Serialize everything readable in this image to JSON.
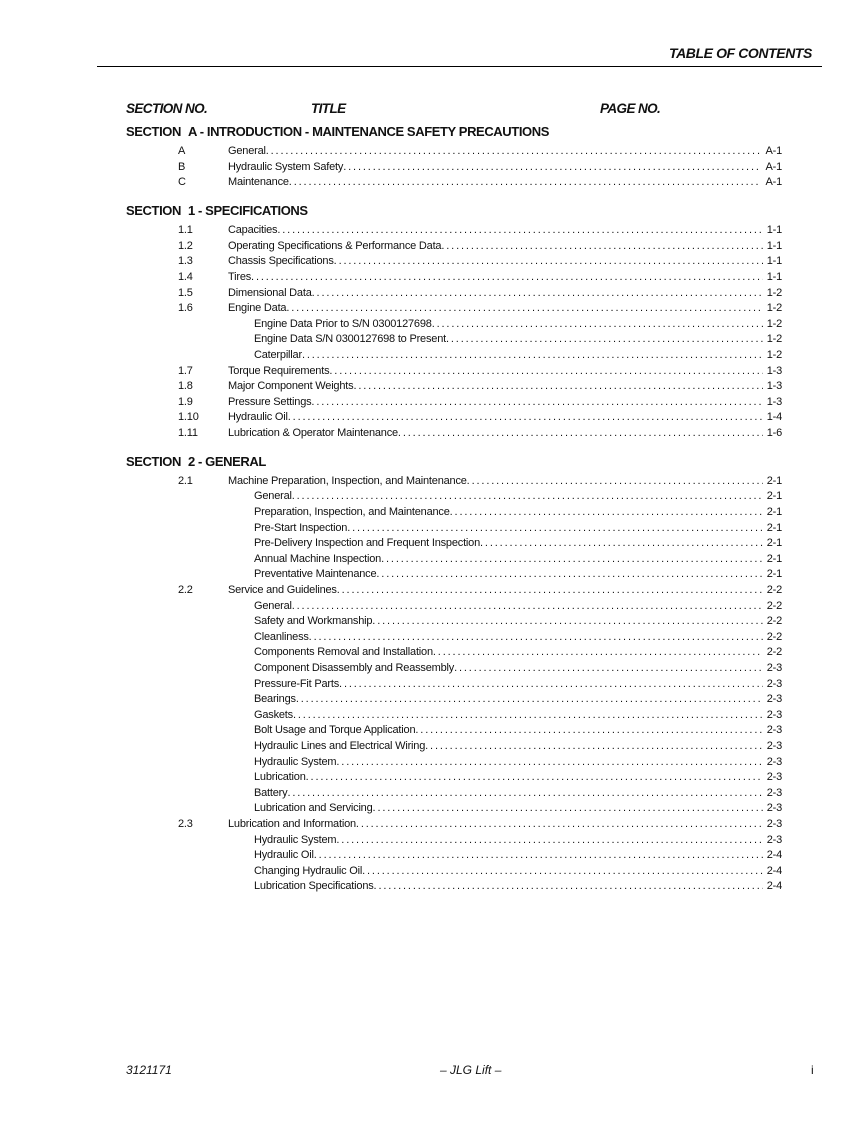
{
  "header": {
    "title": "TABLE OF CONTENTS"
  },
  "columns": {
    "section_no": "SECTION NO.",
    "title": "TITLE",
    "page_no": "PAGE NO."
  },
  "sections": [
    {
      "label": "SECTION",
      "title": "A - INTRODUCTION - MAINTENANCE SAFETY PRECAUTIONS",
      "entries": [
        {
          "num": "A",
          "title": "General",
          "page": "A-1",
          "level": 1
        },
        {
          "num": "B",
          "title": "Hydraulic System Safety",
          "page": "A-1",
          "level": 1
        },
        {
          "num": "C",
          "title": "Maintenance",
          "page": "A-1",
          "level": 1
        }
      ]
    },
    {
      "label": "SECTION",
      "title": "1 - SPECIFICATIONS",
      "entries": [
        {
          "num": "1.1",
          "title": "Capacities",
          "page": "1-1",
          "level": 1
        },
        {
          "num": "1.2",
          "title": "Operating Specifications & Performance Data",
          "page": "1-1",
          "level": 1
        },
        {
          "num": "1.3",
          "title": "Chassis Specifications",
          "page": "1-1",
          "level": 1
        },
        {
          "num": "1.4",
          "title": "Tires",
          "page": "1-1",
          "level": 1
        },
        {
          "num": "1.5",
          "title": "Dimensional Data",
          "page": "1-2",
          "level": 1
        },
        {
          "num": "1.6",
          "title": "Engine Data",
          "page": "1-2",
          "level": 1
        },
        {
          "num": "",
          "title": "Engine Data Prior to S/N 0300127698",
          "page": "1-2",
          "level": 2
        },
        {
          "num": "",
          "title": "Engine Data S/N 0300127698 to Present",
          "page": "1-2",
          "level": 2
        },
        {
          "num": "",
          "title": "Caterpillar",
          "page": "1-2",
          "level": 2
        },
        {
          "num": "1.7",
          "title": "Torque Requirements",
          "page": "1-3",
          "level": 1
        },
        {
          "num": "1.8",
          "title": "Major Component Weights",
          "page": "1-3",
          "level": 1
        },
        {
          "num": "1.9",
          "title": "Pressure Settings",
          "page": "1-3",
          "level": 1
        },
        {
          "num": "1.10",
          "title": "Hydraulic Oil",
          "page": "1-4",
          "level": 1
        },
        {
          "num": "1.11",
          "title": "Lubrication & Operator Maintenance",
          "page": "1-6",
          "level": 1
        }
      ]
    },
    {
      "label": "SECTION",
      "title": "2 - GENERAL",
      "entries": [
        {
          "num": "2.1",
          "title": "Machine Preparation, Inspection, and Maintenance",
          "page": "2-1",
          "level": 1
        },
        {
          "num": "",
          "title": "General",
          "page": "2-1",
          "level": 2
        },
        {
          "num": "",
          "title": "Preparation, Inspection, and Maintenance",
          "page": "2-1",
          "level": 2
        },
        {
          "num": "",
          "title": "Pre-Start Inspection",
          "page": "2-1",
          "level": 2
        },
        {
          "num": "",
          "title": "Pre-Delivery Inspection and Frequent Inspection",
          "page": "2-1",
          "level": 2
        },
        {
          "num": "",
          "title": "Annual Machine Inspection",
          "page": "2-1",
          "level": 2
        },
        {
          "num": "",
          "title": "Preventative Maintenance",
          "page": "2-1",
          "level": 2
        },
        {
          "num": "2.2",
          "title": "Service and Guidelines",
          "page": "2-2",
          "level": 1
        },
        {
          "num": "",
          "title": "General",
          "page": "2-2",
          "level": 2
        },
        {
          "num": "",
          "title": "Safety and Workmanship",
          "page": "2-2",
          "level": 2
        },
        {
          "num": "",
          "title": "Cleanliness",
          "page": "2-2",
          "level": 2
        },
        {
          "num": "",
          "title": "Components Removal and Installation",
          "page": "2-2",
          "level": 2
        },
        {
          "num": "",
          "title": "Component Disassembly and Reassembly",
          "page": "2-3",
          "level": 2
        },
        {
          "num": "",
          "title": "Pressure-Fit Parts",
          "page": "2-3",
          "level": 2
        },
        {
          "num": "",
          "title": "Bearings",
          "page": "2-3",
          "level": 2
        },
        {
          "num": "",
          "title": "Gaskets",
          "page": "2-3",
          "level": 2
        },
        {
          "num": "",
          "title": "Bolt Usage and Torque Application",
          "page": "2-3",
          "level": 2
        },
        {
          "num": "",
          "title": "Hydraulic Lines and Electrical Wiring",
          "page": "2-3",
          "level": 2
        },
        {
          "num": "",
          "title": "Hydraulic System",
          "page": "2-3",
          "level": 2
        },
        {
          "num": "",
          "title": "Lubrication",
          "page": "2-3",
          "level": 2
        },
        {
          "num": "",
          "title": "Battery",
          "page": "2-3",
          "level": 2
        },
        {
          "num": "",
          "title": "Lubrication and Servicing",
          "page": "2-3",
          "level": 2
        },
        {
          "num": "2.3",
          "title": "Lubrication and Information",
          "page": "2-3",
          "level": 1
        },
        {
          "num": "",
          "title": "Hydraulic System",
          "page": "2-3",
          "level": 2
        },
        {
          "num": "",
          "title": "Hydraulic Oil",
          "page": "2-4",
          "level": 2
        },
        {
          "num": "",
          "title": "Changing Hydraulic Oil",
          "page": "2-4",
          "level": 2
        },
        {
          "num": "",
          "title": "Lubrication Specifications",
          "page": "2-4",
          "level": 2
        }
      ]
    }
  ],
  "footer": {
    "doc_number": "3121171",
    "center": "– JLG Lift –",
    "page": "i"
  }
}
